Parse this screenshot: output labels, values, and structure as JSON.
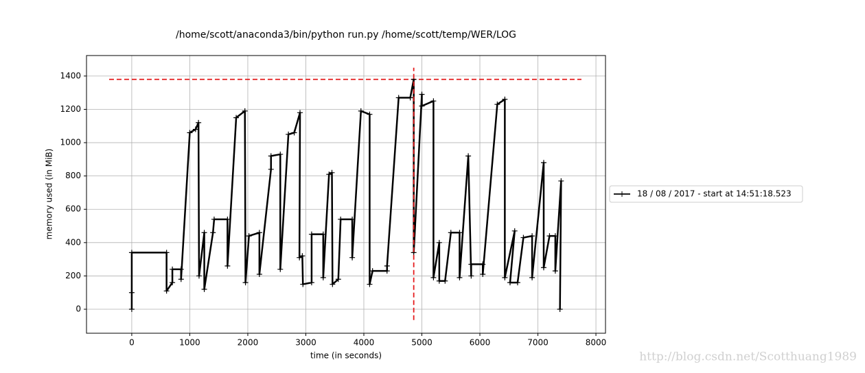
{
  "chart_data": {
    "type": "line",
    "title": "/home/scott/anaconda3/bin/python run.py /home/scott/temp/WER/LOG",
    "x_label": "time (in seconds)",
    "y_label": "memory used (in MiB)",
    "xlim": [
      -780,
      8165
    ],
    "ylim": [
      -144,
      1523
    ],
    "xticks": [
      0,
      1000,
      2000,
      3000,
      4000,
      5000,
      6000,
      7000,
      8000
    ],
    "yticks": [
      0,
      200,
      400,
      600,
      800,
      1000,
      1200,
      1400
    ],
    "grid": true,
    "legend": "right",
    "series": [
      {
        "name": "18 / 08 / 2017 - start at 14:51:18.523",
        "color": "#000000",
        "x": [
          0,
          0,
          0,
          600,
          600,
          700,
          700,
          850,
          850,
          1000,
          1100,
          1150,
          1160,
          1250,
          1250,
          1400,
          1420,
          1650,
          1650,
          1800,
          1950,
          1960,
          2020,
          2200,
          2200,
          2400,
          2400,
          2560,
          2560,
          2700,
          2800,
          2900,
          2890,
          2940,
          2950,
          3100,
          3100,
          3300,
          3300,
          3400,
          3450,
          3460,
          3560,
          3600,
          3800,
          3800,
          3950,
          4100,
          4100,
          4150,
          4400,
          4400,
          4600,
          4800,
          4860,
          4860,
          5000,
          5000,
          5200,
          5200,
          5300,
          5300,
          5400,
          5500,
          5650,
          5650,
          5800,
          5850,
          5850,
          6050,
          6050,
          6300,
          6430,
          6430,
          6600,
          6520,
          6650,
          6750,
          6900,
          6900,
          7100,
          7100,
          7200,
          7300,
          7300,
          7400,
          7380
        ],
        "values": [
          0,
          100,
          340,
          340,
          110,
          160,
          240,
          240,
          180,
          1060,
          1080,
          1120,
          200,
          460,
          120,
          460,
          540,
          540,
          260,
          1150,
          1190,
          160,
          440,
          460,
          210,
          840,
          920,
          930,
          240,
          1050,
          1060,
          1180,
          310,
          320,
          150,
          160,
          450,
          450,
          190,
          810,
          820,
          150,
          180,
          540,
          540,
          310,
          1190,
          1170,
          150,
          230,
          230,
          260,
          1270,
          1270,
          1380,
          340,
          1290,
          1220,
          1250,
          190,
          400,
          170,
          170,
          460,
          460,
          190,
          920,
          200,
          270,
          270,
          210,
          1230,
          1260,
          190,
          470,
          160,
          160,
          430,
          440,
          190,
          880,
          250,
          440,
          440,
          230,
          770,
          0
        ]
      }
    ],
    "hline": {
      "y": 1380,
      "xmin": -390,
      "xmax": 7750,
      "color": "#e41a1c"
    },
    "vline": {
      "x": 4860,
      "ymin": -65,
      "ymax": 1450,
      "color": "#e41a1c"
    },
    "watermark": "http://blog.csdn.net/Scotthuang1989"
  }
}
